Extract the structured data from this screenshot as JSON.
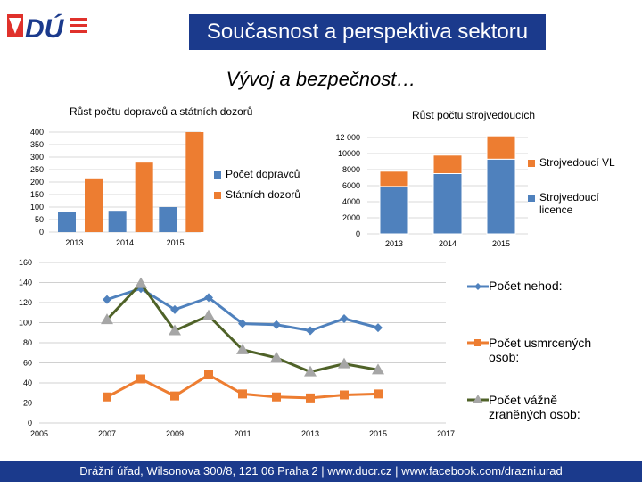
{
  "header": {
    "title": "Současnost a perspektiva sektoru",
    "logo_text": "DÚ"
  },
  "subtitle": "Vývoj a bezpečnost…",
  "footer": "Drážní úřad, Wilsonova 300/8, 121 06  Praha 2 | www.ducr.cz | www.facebook.com/drazni.urad",
  "colors": {
    "blue": "#4f81bd",
    "orange": "#ed7d31",
    "olive": "#4f6228",
    "gray": "#a6a6a6",
    "navy": "#1b3a8c"
  },
  "chart_data": [
    {
      "type": "bar",
      "title": "Růst počtu dopravců a státních dozorů",
      "categories": [
        "2013",
        "2014",
        "2015"
      ],
      "ylim": [
        0,
        400
      ],
      "yticks": [
        "0",
        "50",
        "100",
        "150",
        "200",
        "250",
        "300",
        "350",
        "400"
      ],
      "series": [
        {
          "name": "Počet dopravců",
          "values": [
            80,
            85,
            100
          ]
        },
        {
          "name": "Státních dozorů",
          "values": [
            215,
            278,
            400
          ]
        }
      ]
    },
    {
      "type": "bar",
      "stacked": true,
      "title": "Růst počtu strojvedoucích",
      "categories": [
        "2013",
        "2014",
        "2015"
      ],
      "ylim": [
        0,
        12000
      ],
      "yticks": [
        "0",
        "2000",
        "4000",
        "6000",
        "8000",
        "10000",
        "12 000"
      ],
      "series": [
        {
          "name": "Strojvedoucí licence",
          "values": [
            5900,
            7500,
            9300
          ]
        },
        {
          "name": "Strojvedoucí VL",
          "values": [
            1900,
            2300,
            2900
          ]
        }
      ]
    },
    {
      "type": "line",
      "title": "",
      "xlim": [
        2005,
        2017
      ],
      "ylim": [
        0,
        160
      ],
      "xticks": [
        "2005",
        "2007",
        "2009",
        "2011",
        "2013",
        "2015",
        "2017"
      ],
      "yticks": [
        "0",
        "20",
        "40",
        "60",
        "80",
        "100",
        "120",
        "140",
        "160"
      ],
      "series": [
        {
          "name": "Počet nehod:",
          "x": [
            2007,
            2008,
            2009,
            2010,
            2011,
            2012,
            2013,
            2014,
            2015
          ],
          "values": [
            123,
            134,
            113,
            125,
            99,
            98,
            92,
            104,
            95
          ]
        },
        {
          "name": "Počet usmrcených osob:",
          "x": [
            2007,
            2008,
            2009,
            2010,
            2011,
            2012,
            2013,
            2014,
            2015
          ],
          "values": [
            26,
            44,
            27,
            48,
            29,
            26,
            25,
            28,
            29
          ]
        },
        {
          "name": "Počet vážně zraněných osob:",
          "x": [
            2007,
            2008,
            2009,
            2010,
            2011,
            2012,
            2013,
            2014,
            2015
          ],
          "values": [
            103,
            139,
            92,
            107,
            73,
            65,
            51,
            59,
            53
          ]
        }
      ]
    }
  ]
}
